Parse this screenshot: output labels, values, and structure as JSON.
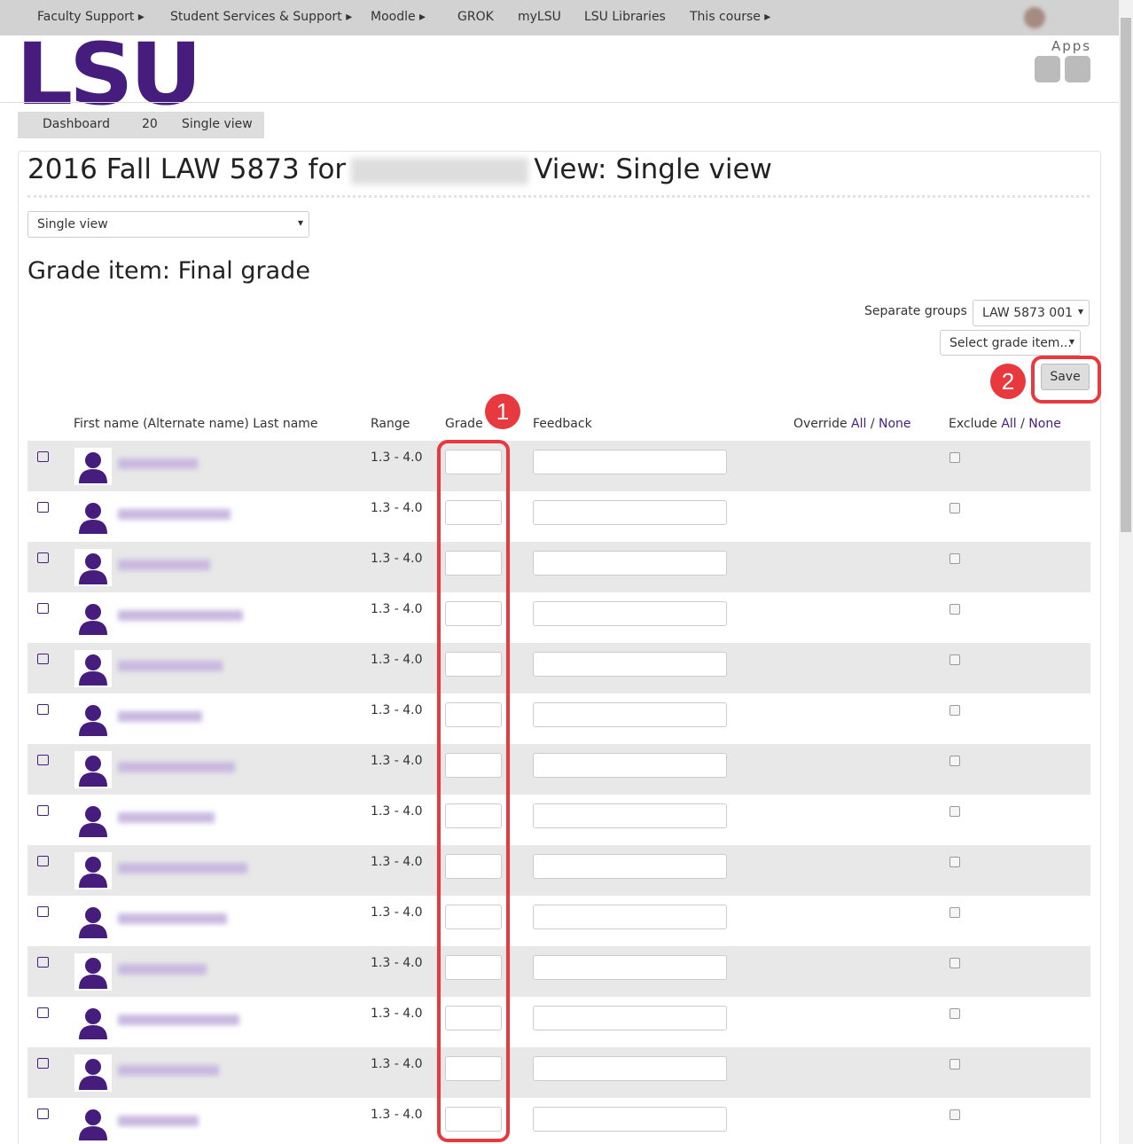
{
  "nav": {
    "items": [
      "Faculty Support",
      "Student Services & Support",
      "Moodle",
      "GROK",
      "myLSU",
      "LSU Libraries",
      "This course"
    ]
  },
  "header": {
    "logo": "LSU",
    "apps": "Apps"
  },
  "breadcrumb": [
    "Dashboard",
    "20",
    "Single view"
  ],
  "page": {
    "title_start": "2016 Fall LAW 5873 for",
    "title_end": "View: Single view",
    "view_select": "Single view",
    "grade_item": "Grade item: Final grade",
    "groups_label": "Separate groups",
    "groups_select": "LAW 5873 001",
    "grade_item_select": "Select grade item...",
    "save": "Save"
  },
  "annotations": [
    "1",
    "2"
  ],
  "table": {
    "columns": {
      "name": "First name (Alternate name) Last name",
      "range": "Range",
      "grade": "Grade",
      "feedback": "Feedback",
      "override": "Override",
      "exclude": "Exclude",
      "all": "All",
      "separator": "/",
      "none": "None"
    },
    "rows": [
      {
        "range": "1.3 - 4.0"
      },
      {
        "range": "1.3 - 4.0"
      },
      {
        "range": "1.3 - 4.0"
      },
      {
        "range": "1.3 - 4.0"
      },
      {
        "range": "1.3 - 4.0"
      },
      {
        "range": "1.3 - 4.0"
      },
      {
        "range": "1.3 - 4.0"
      },
      {
        "range": "1.3 - 4.0"
      },
      {
        "range": "1.3 - 4.0"
      },
      {
        "range": "1.3 - 4.0"
      },
      {
        "range": "1.3 - 4.0"
      },
      {
        "range": "1.3 - 4.0"
      },
      {
        "range": "1.3 - 4.0"
      },
      {
        "range": "1.3 - 4.0"
      }
    ]
  }
}
